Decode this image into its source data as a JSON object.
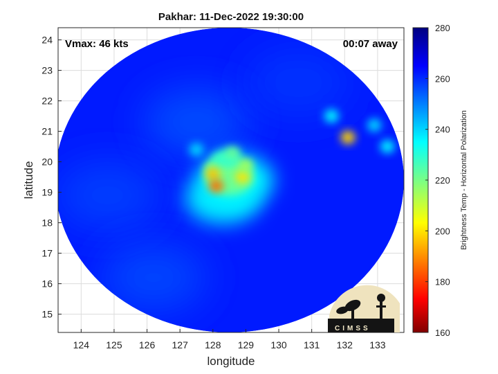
{
  "chart_data": {
    "type": "heatmap",
    "title": "Pakhar: 11-Dec-2022 19:30:00",
    "xlabel": "longitude",
    "ylabel": "latitude",
    "xlim": [
      123.3,
      133.8
    ],
    "ylim": [
      14.4,
      24.4
    ],
    "xticks": [
      124,
      125,
      126,
      127,
      128,
      129,
      130,
      131,
      132,
      133
    ],
    "yticks": [
      15,
      16,
      17,
      18,
      19,
      20,
      21,
      22,
      23,
      24
    ],
    "grid": true,
    "annotations": {
      "vmax": "Vmax: 46 kts",
      "time_away": "00:07 away"
    },
    "colorbar": {
      "label": "Brightness Temp - Horizontal Polarization",
      "range": [
        160,
        280
      ],
      "ticks": [
        160,
        180,
        200,
        220,
        240,
        260,
        280
      ],
      "colormap": "jet"
    },
    "swath": {
      "center": [
        128.5,
        19.4
      ],
      "radius_lon": 5.3,
      "radius_lat": 5.0
    },
    "background_value": 262,
    "features": [
      {
        "name": "low",
        "lon": 127.5,
        "lat": 21.3,
        "value": 256
      },
      {
        "name": "low",
        "lon": 124.8,
        "lat": 18.9,
        "value": 258
      },
      {
        "name": "low",
        "lon": 130.6,
        "lat": 22.6,
        "value": 259
      },
      {
        "name": "low",
        "lon": 126.2,
        "lat": 16.2,
        "value": 257
      },
      {
        "name": "envelope",
        "lon": 128.3,
        "lat": 18.8,
        "value": 238
      },
      {
        "name": "envelope",
        "lon": 128.7,
        "lat": 19.4,
        "value": 236
      },
      {
        "name": "core",
        "lon": 128.5,
        "lat": 19.5,
        "value": 222
      },
      {
        "name": "band",
        "lon": 128.2,
        "lat": 19.8,
        "value": 220
      },
      {
        "name": "band",
        "lon": 128.4,
        "lat": 20.1,
        "value": 228
      },
      {
        "name": "peak",
        "lon": 128.0,
        "lat": 19.6,
        "value": 196
      },
      {
        "name": "peak",
        "lon": 128.1,
        "lat": 19.2,
        "value": 186
      },
      {
        "name": "peak",
        "lon": 128.9,
        "lat": 19.5,
        "value": 200
      },
      {
        "name": "peak",
        "lon": 129.0,
        "lat": 19.9,
        "value": 214
      },
      {
        "name": "peak",
        "lon": 128.6,
        "lat": 20.3,
        "value": 222
      },
      {
        "name": "cell",
        "lon": 132.1,
        "lat": 20.8,
        "value": 198
      },
      {
        "name": "cell",
        "lon": 131.6,
        "lat": 21.5,
        "value": 236
      },
      {
        "name": "cell",
        "lon": 132.9,
        "lat": 21.2,
        "value": 240
      },
      {
        "name": "cell",
        "lon": 133.3,
        "lat": 20.5,
        "value": 236
      },
      {
        "name": "cell",
        "lon": 127.5,
        "lat": 20.4,
        "value": 240
      }
    ]
  },
  "logo": {
    "text": "CIMSS",
    "colors": {
      "background": "#efe3be",
      "silhouette": "#141414"
    }
  }
}
